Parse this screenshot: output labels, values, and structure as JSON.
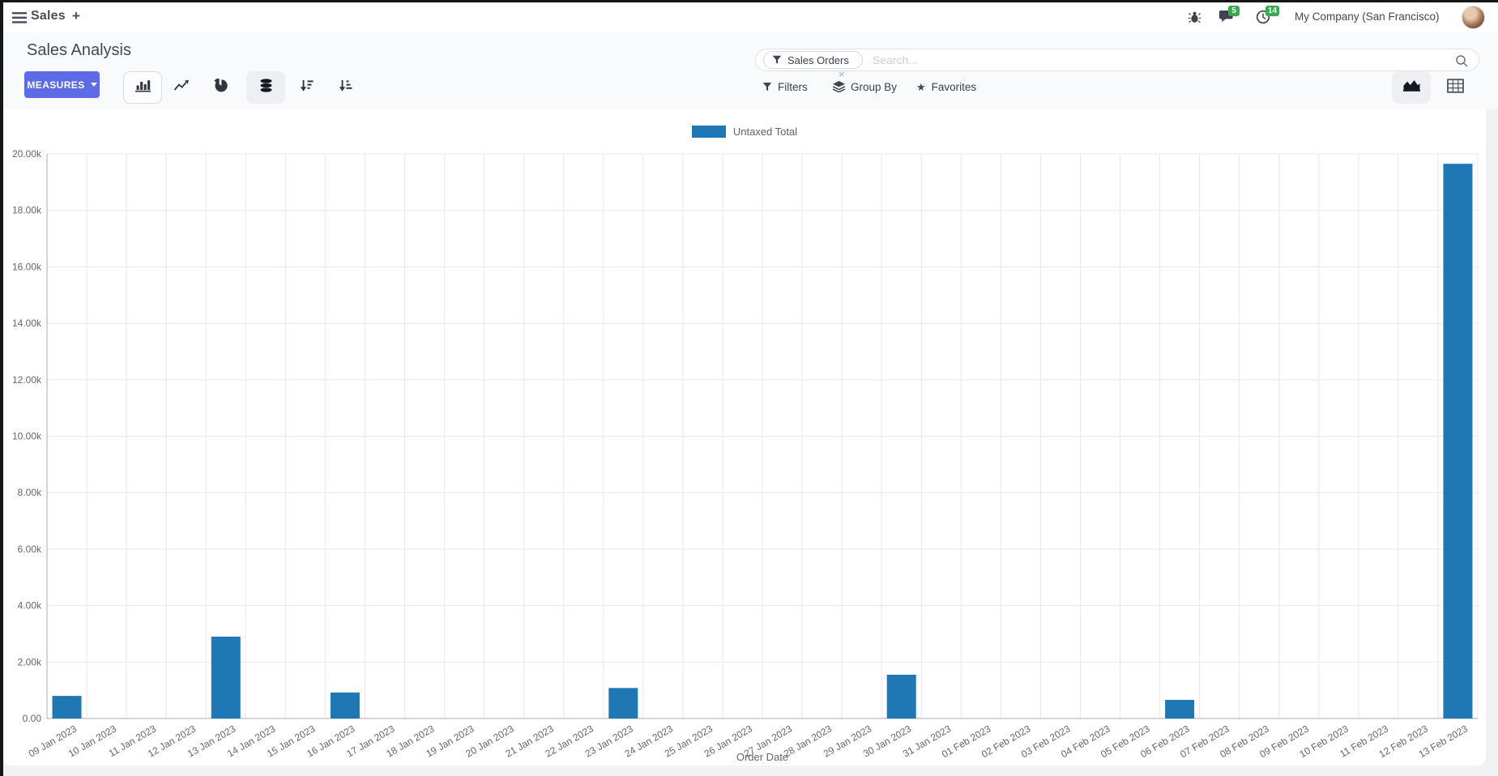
{
  "navbar": {
    "app_name": "Sales",
    "plus_label": "+",
    "message_count": "5",
    "activity_count": "14",
    "company_name": "My Company (San Francisco)"
  },
  "control_panel": {
    "title": "Sales Analysis",
    "measures_label": "MEASURES",
    "search": {
      "facet_label": "Sales Orders",
      "facet_remove": "×",
      "placeholder": "Search..."
    },
    "filters_label": "Filters",
    "group_by_label": "Group By",
    "favorites_label": "Favorites"
  },
  "icons": {
    "menu-icon": "hamburger",
    "add-icon": "plus",
    "bug-icon": "beetle",
    "messages-icon": "speech-bubble",
    "activities-icon": "clock",
    "bar-chart-icon": "vertical-bars",
    "line-chart-icon": "zigzag-arrow",
    "pie-chart-icon": "pie",
    "stacked-icon": "database-stack",
    "sort-desc-icon": "arrow-down-bars-desc",
    "sort-asc-icon": "arrow-down-bars-asc",
    "filter-icon": "funnel",
    "group-by-icon": "layers",
    "favorites-icon": "star",
    "search-icon": "magnifier",
    "graph-view-icon": "area-chart",
    "pivot-view-icon": "grid-table"
  },
  "colors": {
    "primary": "#5d6be4",
    "bar": "#1f77b4",
    "badge": "#38a94e"
  },
  "chart_data": {
    "type": "bar",
    "title": "Sales Analysis",
    "legend": [
      "Untaxed Total"
    ],
    "legend_position": "top-center",
    "grid": true,
    "xlabel": "Order Date",
    "ylabel": "",
    "ylim": [
      0,
      20000
    ],
    "y_ticks": [
      "20.00k",
      "18.00k",
      "16.00k",
      "14.00k",
      "12.00k",
      "10.00k",
      "8.00k",
      "6.00k",
      "4.00k",
      "2.00k",
      "0.00"
    ],
    "categories": [
      "09 Jan 2023",
      "10 Jan 2023",
      "11 Jan 2023",
      "12 Jan 2023",
      "13 Jan 2023",
      "14 Jan 2023",
      "15 Jan 2023",
      "16 Jan 2023",
      "17 Jan 2023",
      "18 Jan 2023",
      "19 Jan 2023",
      "20 Jan 2023",
      "21 Jan 2023",
      "22 Jan 2023",
      "23 Jan 2023",
      "24 Jan 2023",
      "25 Jan 2023",
      "26 Jan 2023",
      "27 Jan 2023",
      "28 Jan 2023",
      "29 Jan 2023",
      "30 Jan 2023",
      "31 Jan 2023",
      "01 Feb 2023",
      "02 Feb 2023",
      "03 Feb 2023",
      "04 Feb 2023",
      "05 Feb 2023",
      "06 Feb 2023",
      "07 Feb 2023",
      "08 Feb 2023",
      "09 Feb 2023",
      "10 Feb 2023",
      "11 Feb 2023",
      "12 Feb 2023",
      "13 Feb 2023"
    ],
    "series": [
      {
        "name": "Untaxed Total",
        "color": "#1f77b4",
        "values": [
          800,
          0,
          0,
          0,
          2900,
          0,
          0,
          920,
          0,
          0,
          0,
          0,
          0,
          0,
          1080,
          0,
          0,
          0,
          0,
          0,
          0,
          1550,
          0,
          0,
          0,
          0,
          0,
          0,
          660,
          0,
          0,
          0,
          0,
          0,
          0,
          19650
        ]
      }
    ]
  }
}
